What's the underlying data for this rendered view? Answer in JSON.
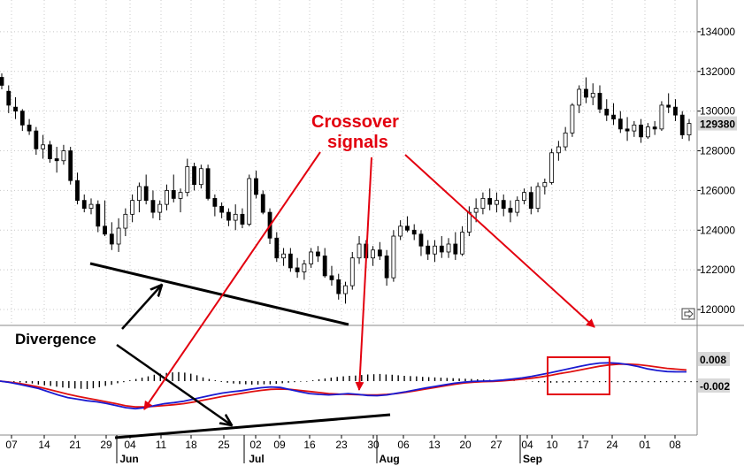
{
  "chart_data": [
    {
      "type": "candlestick",
      "x_tick_labels": [
        "07",
        "14",
        "21",
        "29",
        "04",
        "11",
        "18",
        "25",
        "02",
        "09",
        "16",
        "23",
        "30",
        "06",
        "13",
        "20",
        "27",
        "04",
        "10",
        "17",
        "24",
        "01",
        "08"
      ],
      "month_labels": [
        "Jun",
        "Jul",
        "Aug",
        "Sep"
      ],
      "price_tick_labels": [
        "134000",
        "132000",
        "130000",
        "128000",
        "126000",
        "124000",
        "122000",
        "120000"
      ],
      "last_price_badge": "129380",
      "ylim": [
        119200,
        135600
      ],
      "candles": [
        [
          131700,
          131900,
          131100,
          131300
        ],
        [
          131000,
          131300,
          129900,
          130300
        ],
        [
          130200,
          130700,
          129600,
          130000
        ],
        [
          130000,
          130100,
          129000,
          129300
        ],
        [
          129300,
          129600,
          128800,
          129000
        ],
        [
          129000,
          129200,
          127800,
          128100
        ],
        [
          128100,
          128800,
          127600,
          128300
        ],
        [
          128300,
          128500,
          127400,
          127600
        ],
        [
          127600,
          128200,
          126900,
          127500
        ],
        [
          127500,
          128300,
          127300,
          128000
        ],
        [
          128000,
          128200,
          126300,
          126500
        ],
        [
          126500,
          126900,
          125300,
          125500
        ],
        [
          125500,
          125800,
          124900,
          125100
        ],
        [
          125100,
          125600,
          124800,
          125300
        ],
        [
          125300,
          125500,
          123900,
          124200
        ],
        [
          124200,
          125500,
          123700,
          123800
        ],
        [
          123800,
          124400,
          123000,
          123300
        ],
        [
          123300,
          124600,
          122900,
          124100
        ],
        [
          124100,
          125100,
          123700,
          124800
        ],
        [
          124800,
          125800,
          124400,
          125500
        ],
        [
          125500,
          126400,
          124900,
          126200
        ],
        [
          126200,
          126800,
          125300,
          125500
        ],
        [
          125500,
          126000,
          124600,
          124900
        ],
        [
          124900,
          125500,
          124500,
          125300
        ],
        [
          125300,
          126300,
          125000,
          126000
        ],
        [
          126000,
          126800,
          125400,
          125600
        ],
        [
          125600,
          126100,
          124900,
          125900
        ],
        [
          125900,
          127600,
          125700,
          127200
        ],
        [
          127200,
          127400,
          126000,
          126300
        ],
        [
          126300,
          127300,
          126100,
          127100
        ],
        [
          127100,
          127300,
          125500,
          125600
        ],
        [
          125600,
          125800,
          124700,
          125200
        ],
        [
          125200,
          125400,
          124600,
          124900
        ],
        [
          124900,
          125100,
          124200,
          124500
        ],
        [
          124500,
          125300,
          124000,
          124800
        ],
        [
          124800,
          125100,
          124100,
          124300
        ],
        [
          124300,
          126800,
          124200,
          126600
        ],
        [
          126600,
          127000,
          125600,
          125800
        ],
        [
          125800,
          126000,
          124800,
          124900
        ],
        [
          124900,
          125100,
          123300,
          123600
        ],
        [
          123600,
          123900,
          122400,
          122600
        ],
        [
          122600,
          123100,
          122200,
          122800
        ],
        [
          122800,
          123100,
          121900,
          122100
        ],
        [
          122100,
          122600,
          121600,
          121900
        ],
        [
          121900,
          122500,
          121500,
          122300
        ],
        [
          122300,
          123100,
          122100,
          122900
        ],
        [
          122900,
          123200,
          122400,
          122700
        ],
        [
          122700,
          123100,
          121600,
          121700
        ],
        [
          121700,
          122200,
          121200,
          121500
        ],
        [
          121500,
          121800,
          120500,
          120800
        ],
        [
          120800,
          121400,
          120300,
          121200
        ],
        [
          121200,
          122900,
          121000,
          122600
        ],
        [
          122600,
          123700,
          122300,
          123300
        ],
        [
          123300,
          123500,
          122100,
          122600
        ],
        [
          122600,
          123200,
          122200,
          123000
        ],
        [
          123000,
          123400,
          122500,
          122700
        ],
        [
          122700,
          123000,
          121200,
          121600
        ],
        [
          121600,
          124000,
          121400,
          123700
        ],
        [
          123700,
          124500,
          123500,
          124200
        ],
        [
          124200,
          124700,
          123900,
          124000
        ],
        [
          124000,
          124300,
          123500,
          123800
        ],
        [
          123800,
          124000,
          122700,
          123200
        ],
        [
          123200,
          123500,
          122500,
          122800
        ],
        [
          122800,
          123500,
          122400,
          123200
        ],
        [
          123200,
          123700,
          122600,
          122900
        ],
        [
          122900,
          123600,
          122600,
          123300
        ],
        [
          123300,
          123900,
          122500,
          122800
        ],
        [
          122800,
          124200,
          122700,
          123900
        ],
        [
          123900,
          125200,
          123700,
          124900
        ],
        [
          124900,
          125600,
          124400,
          125100
        ],
        [
          125100,
          125900,
          124800,
          125600
        ],
        [
          125600,
          126100,
          125000,
          125300
        ],
        [
          125300,
          125900,
          124900,
          125500
        ],
        [
          125500,
          125800,
          124700,
          125100
        ],
        [
          125100,
          125500,
          124400,
          124900
        ],
        [
          124900,
          125700,
          124700,
          125500
        ],
        [
          125500,
          126100,
          125300,
          125900
        ],
        [
          125900,
          126200,
          124800,
          125100
        ],
        [
          125100,
          126400,
          124900,
          126200
        ],
        [
          126200,
          126600,
          125800,
          126400
        ],
        [
          126400,
          128100,
          126300,
          127900
        ],
        [
          127900,
          128500,
          127500,
          128200
        ],
        [
          128200,
          129200,
          128000,
          128900
        ],
        [
          128900,
          130400,
          128700,
          130300
        ],
        [
          130300,
          131300,
          129900,
          131100
        ],
        [
          131100,
          131700,
          130400,
          130700
        ],
        [
          130700,
          131400,
          130300,
          130900
        ],
        [
          130900,
          131300,
          129900,
          130100
        ],
        [
          130100,
          130600,
          129500,
          129800
        ],
        [
          129800,
          130400,
          129300,
          129600
        ],
        [
          129600,
          130000,
          128900,
          129100
        ],
        [
          129100,
          129700,
          128500,
          129000
        ],
        [
          129000,
          129500,
          128700,
          129300
        ],
        [
          129300,
          129600,
          128400,
          128700
        ],
        [
          128700,
          129400,
          128600,
          129200
        ],
        [
          129200,
          129500,
          128800,
          129100
        ],
        [
          129100,
          130500,
          129000,
          130300
        ],
        [
          130300,
          130900,
          129900,
          130200
        ],
        [
          130200,
          130600,
          129500,
          129800
        ],
        [
          129800,
          130000,
          128600,
          128800
        ],
        [
          128800,
          129600,
          128500,
          129380
        ]
      ]
    },
    {
      "type": "macd",
      "markers": [
        "0.008",
        "-0.002"
      ],
      "macd": [
        0.0,
        -0.0005,
        -0.0012,
        -0.002,
        -0.0028,
        -0.004,
        -0.0052,
        -0.0062,
        -0.0068,
        -0.0074,
        -0.0078,
        -0.0084,
        -0.0092,
        -0.01,
        -0.0104,
        -0.01,
        -0.0092,
        -0.0085,
        -0.0081,
        -0.0076,
        -0.0068,
        -0.006,
        -0.0052,
        -0.0045,
        -0.004,
        -0.0036,
        -0.003,
        -0.0025,
        -0.0022,
        -0.0024,
        -0.0032,
        -0.004,
        -0.0047,
        -0.005,
        -0.0052,
        -0.005,
        -0.0047,
        -0.005,
        -0.0054,
        -0.0055,
        -0.0052,
        -0.0046,
        -0.004,
        -0.0033,
        -0.0026,
        -0.002,
        -0.0014,
        -0.0008,
        -0.0004,
        -0.0001,
        0.0,
        0.0001,
        0.0004,
        0.0008,
        0.0012,
        0.0018,
        0.0025,
        0.0032,
        0.004,
        0.0048,
        0.0056,
        0.0063,
        0.0068,
        0.0069,
        0.0067,
        0.0062,
        0.0055,
        0.0046,
        0.004,
        0.0036,
        0.0035,
        0.0035
      ],
      "signal": [
        0.0,
        -0.0004,
        -0.0009,
        -0.0015,
        -0.0022,
        -0.0031,
        -0.004,
        -0.0049,
        -0.0057,
        -0.0064,
        -0.0071,
        -0.0078,
        -0.0085,
        -0.0093,
        -0.0097,
        -0.0097,
        -0.0095,
        -0.0092,
        -0.0089,
        -0.0085,
        -0.0079,
        -0.0072,
        -0.0065,
        -0.0058,
        -0.0052,
        -0.0046,
        -0.004,
        -0.0035,
        -0.0031,
        -0.003,
        -0.0031,
        -0.0035,
        -0.0039,
        -0.0043,
        -0.0047,
        -0.0049,
        -0.005,
        -0.0051,
        -0.0052,
        -0.0052,
        -0.005,
        -0.0047,
        -0.0042,
        -0.0036,
        -0.003,
        -0.0024,
        -0.0018,
        -0.0012,
        -0.0007,
        -0.0004,
        -0.0002,
        -0.0001,
        0.0001,
        0.0004,
        0.0007,
        0.0011,
        0.0016,
        0.0022,
        0.0029,
        0.0035,
        0.0042,
        0.0049,
        0.0056,
        0.0061,
        0.0064,
        0.0064,
        0.0062,
        0.0058,
        0.0053,
        0.0048,
        0.0045,
        0.0042
      ],
      "histogram": [
        0.0,
        -0.0002,
        -0.0003,
        -0.0005,
        -0.0007,
        -0.0009,
        -0.0013,
        -0.0016,
        -0.0018,
        -0.0021,
        -0.0024,
        -0.0026,
        -0.0028,
        -0.0029,
        -0.003,
        -0.0027,
        -0.0023,
        -0.0018,
        -0.0014,
        -0.0008,
        -0.0004,
        0.0003,
        0.0008,
        0.0013,
        0.0018,
        0.0024,
        0.0028,
        0.0031,
        0.0033,
        0.0034,
        0.0032,
        0.0028,
        0.0022,
        0.0014,
        0.0008,
        0.0003,
        -0.0003,
        -0.0006,
        -0.0009,
        -0.0011,
        -0.0012,
        -0.0013,
        -0.0013,
        -0.0012,
        -0.0012,
        -0.001,
        -0.0008,
        -0.0006,
        -0.0004,
        -0.0002,
        -0.0002,
        0.0003,
        0.0007,
        0.001,
        0.0013,
        0.0016,
        0.0018,
        0.002,
        0.0021,
        0.0023,
        0.0025,
        0.0026,
        0.0027,
        0.0025,
        0.0024,
        0.0022,
        0.002,
        0.0019,
        0.0018,
        0.0016,
        0.0015,
        0.0014,
        0.0013,
        0.0012,
        0.0011,
        0.001,
        0.0009,
        0.0008,
        0.0007,
        0.0006,
        0.0005,
        0.0004,
        0.0003,
        0.0002,
        0.0001,
        0.0,
        -0.0001,
        -0.0002,
        -0.0004,
        -0.0005,
        -0.0006,
        -0.0006,
        -0.0005,
        -0.0005,
        -0.0004,
        -0.0004,
        -0.0004,
        -0.0004,
        -0.0004,
        -0.0004,
        -0.0004,
        -0.0004,
        -0.0004,
        -0.0004,
        -0.0004,
        -0.0004,
        -0.0004,
        -0.0004,
        -0.0004,
        -0.0004,
        -0.0004,
        -0.0004,
        -0.0004,
        -0.0004,
        -0.0004
      ]
    }
  ],
  "annotations": {
    "crossover_line1": "Crossover",
    "crossover_line2": "signals",
    "divergence": "Divergence"
  },
  "colors": {
    "macd_line": "#1a1ad0",
    "signal_line": "#e01010",
    "annotation_red": "#e3000f",
    "price_grid": "#c8c8c8",
    "badge_fill": "#d8d8d8"
  }
}
